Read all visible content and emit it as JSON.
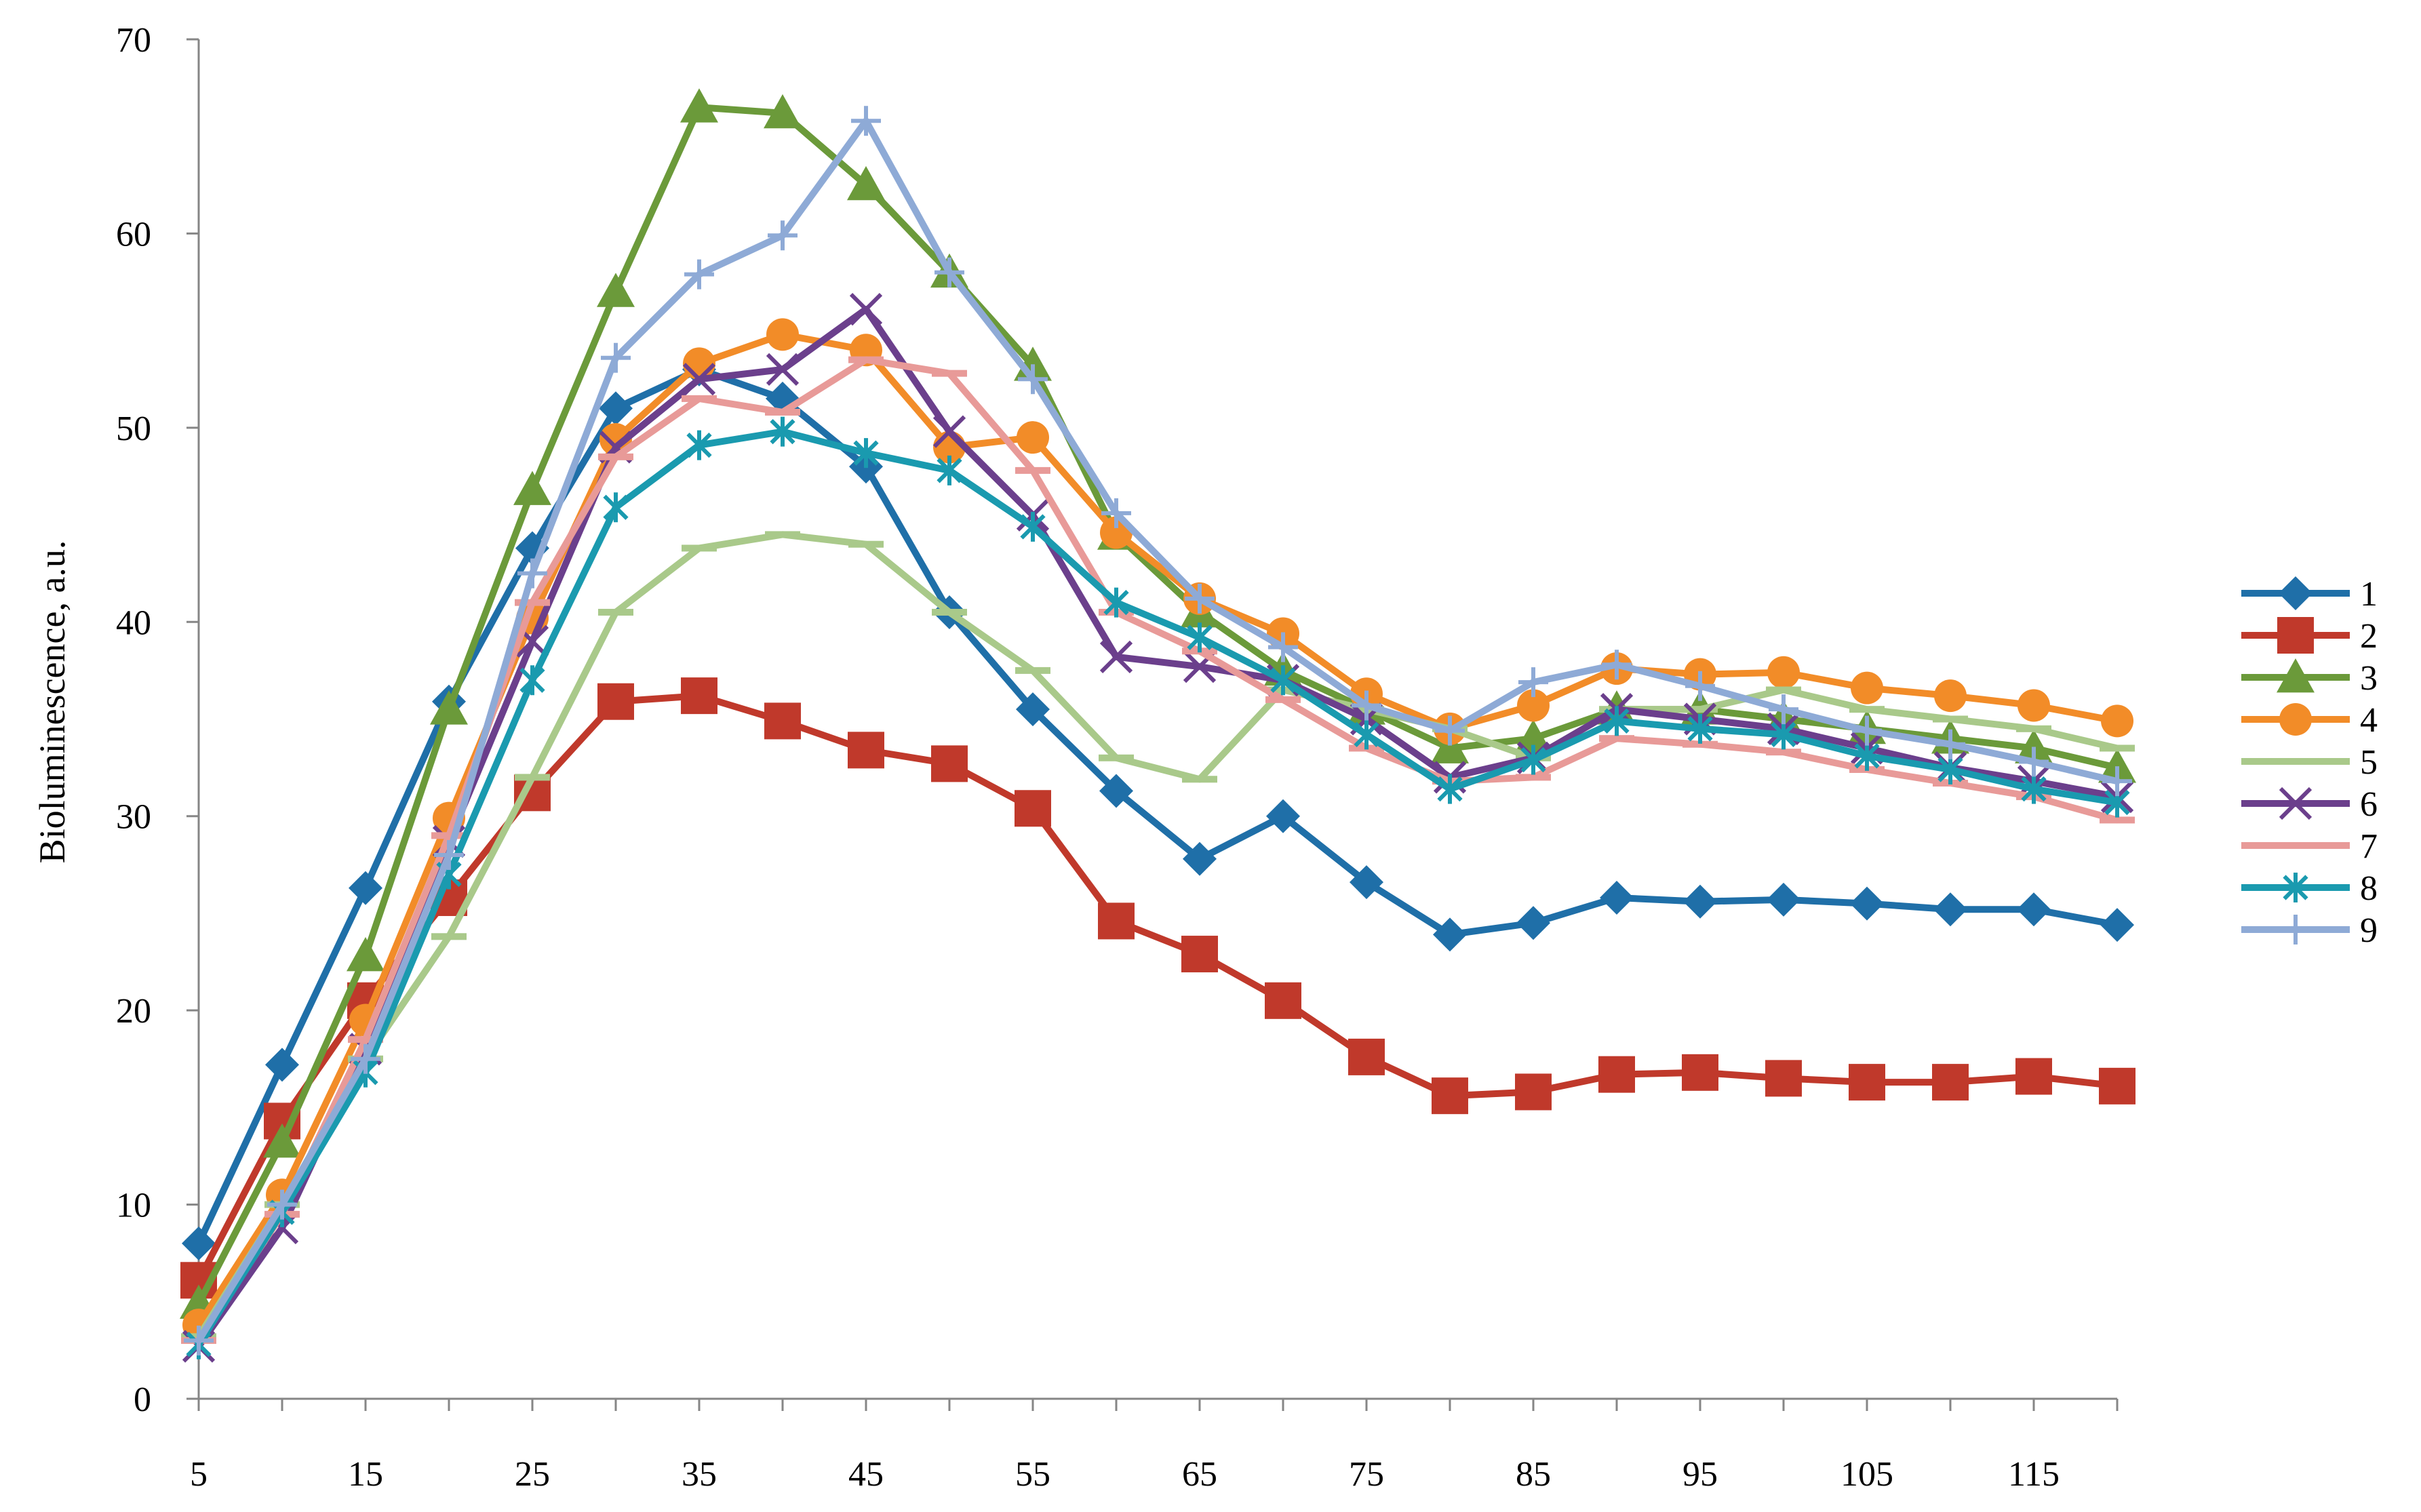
{
  "chart_data": {
    "type": "line",
    "title": "",
    "xlabel": "",
    "ylabel": "Bioluminescence, a.u.",
    "x": [
      5,
      10,
      15,
      20,
      25,
      30,
      35,
      40,
      45,
      50,
      55,
      60,
      65,
      70,
      75,
      80,
      85,
      90,
      95,
      100,
      105,
      110,
      115,
      120
    ],
    "xlim": [
      5,
      120
    ],
    "ylim": [
      0,
      70
    ],
    "x_ticks": [
      5,
      15,
      25,
      35,
      45,
      55,
      65,
      75,
      85,
      95,
      105,
      115
    ],
    "y_ticks": [
      0,
      10,
      20,
      30,
      40,
      50,
      60,
      70
    ],
    "grid": false,
    "legend_position": "right",
    "series": [
      {
        "name": "1",
        "color": "#1F6FA8",
        "marker": "diamond",
        "values": [
          8,
          17.2,
          26.3,
          35.9,
          43.8,
          51,
          53,
          51.5,
          48,
          40.5,
          35.5,
          31.3,
          27.8,
          30,
          26.6,
          23.9,
          24.5,
          25.8,
          25.6,
          25.7,
          25.5,
          25.2,
          25.2,
          24.4
        ]
      },
      {
        "name": "2",
        "color": "#C0392B",
        "marker": "square",
        "values": [
          6.1,
          14.3,
          20.5,
          25.8,
          31.2,
          35.9,
          36.2,
          34.9,
          33.4,
          32.7,
          30.4,
          24.6,
          22.9,
          20.5,
          17.6,
          15.6,
          15.8,
          16.7,
          16.8,
          16.5,
          16.3,
          16.3,
          16.6,
          16.1
        ]
      },
      {
        "name": "3",
        "color": "#6B9A3A",
        "marker": "triangle",
        "values": [
          4.9,
          13.2,
          22.8,
          35.5,
          46.8,
          57,
          66.5,
          66.2,
          62.5,
          58,
          53.2,
          44.5,
          40.5,
          37.5,
          35.5,
          33.5,
          34,
          35.5,
          35.5,
          35,
          34.5,
          34,
          33.5,
          32.5
        ]
      },
      {
        "name": "4",
        "color": "#F28C28",
        "marker": "circle",
        "values": [
          3.8,
          10.5,
          19.5,
          29.9,
          40.2,
          49.4,
          53.3,
          54.8,
          54,
          49,
          49.5,
          44.6,
          41.2,
          39.4,
          36.3,
          34.5,
          35.7,
          37.6,
          37.3,
          37.4,
          36.6,
          36.2,
          35.7,
          34.9
        ]
      },
      {
        "name": "5",
        "color": "#A9C98A",
        "marker": "dash",
        "values": [
          3.2,
          10,
          17.5,
          23.8,
          32,
          40.5,
          43.8,
          44.5,
          44,
          40.5,
          37.5,
          33,
          31.9,
          36.5,
          35.5,
          34.5,
          33,
          35.5,
          35.5,
          36.5,
          35.5,
          35,
          34.5,
          33.5
        ]
      },
      {
        "name": "6",
        "color": "#6B3F8C",
        "marker": "x",
        "values": [
          2.7,
          8.8,
          18,
          28.7,
          39,
          49,
          52.5,
          53,
          56.1,
          49.8,
          45.5,
          38.2,
          37.7,
          37,
          35,
          32,
          33,
          35.5,
          35,
          34.5,
          33.5,
          32.5,
          31.8,
          31
        ]
      },
      {
        "name": "7",
        "color": "#E89A98",
        "marker": "dash",
        "values": [
          3,
          9.5,
          18.5,
          29,
          41,
          48.5,
          51.5,
          50.8,
          53.5,
          52.8,
          47.8,
          40.5,
          38.5,
          36,
          33.5,
          31.8,
          32,
          34,
          33.7,
          33.3,
          32.4,
          31.7,
          31,
          29.8
        ]
      },
      {
        "name": "8",
        "color": "#1A9AAF",
        "marker": "star",
        "values": [
          2.8,
          9.6,
          16.8,
          27,
          37,
          45.9,
          49.1,
          49.8,
          48.7,
          47.8,
          44.9,
          41,
          39.2,
          37,
          34.2,
          31.4,
          32.9,
          34.9,
          34.5,
          34.2,
          33.1,
          32.4,
          31.4,
          30.7
        ]
      },
      {
        "name": "9",
        "color": "#8EAAD6",
        "marker": "plus",
        "values": [
          3,
          10,
          17.5,
          28,
          42.5,
          53.6,
          57.9,
          59.9,
          65.8,
          58,
          52.5,
          45.6,
          41.2,
          38.7,
          35.7,
          34.4,
          36.9,
          37.8,
          36.7,
          35.5,
          34.4,
          33.7,
          32.8,
          31.8
        ]
      }
    ]
  }
}
